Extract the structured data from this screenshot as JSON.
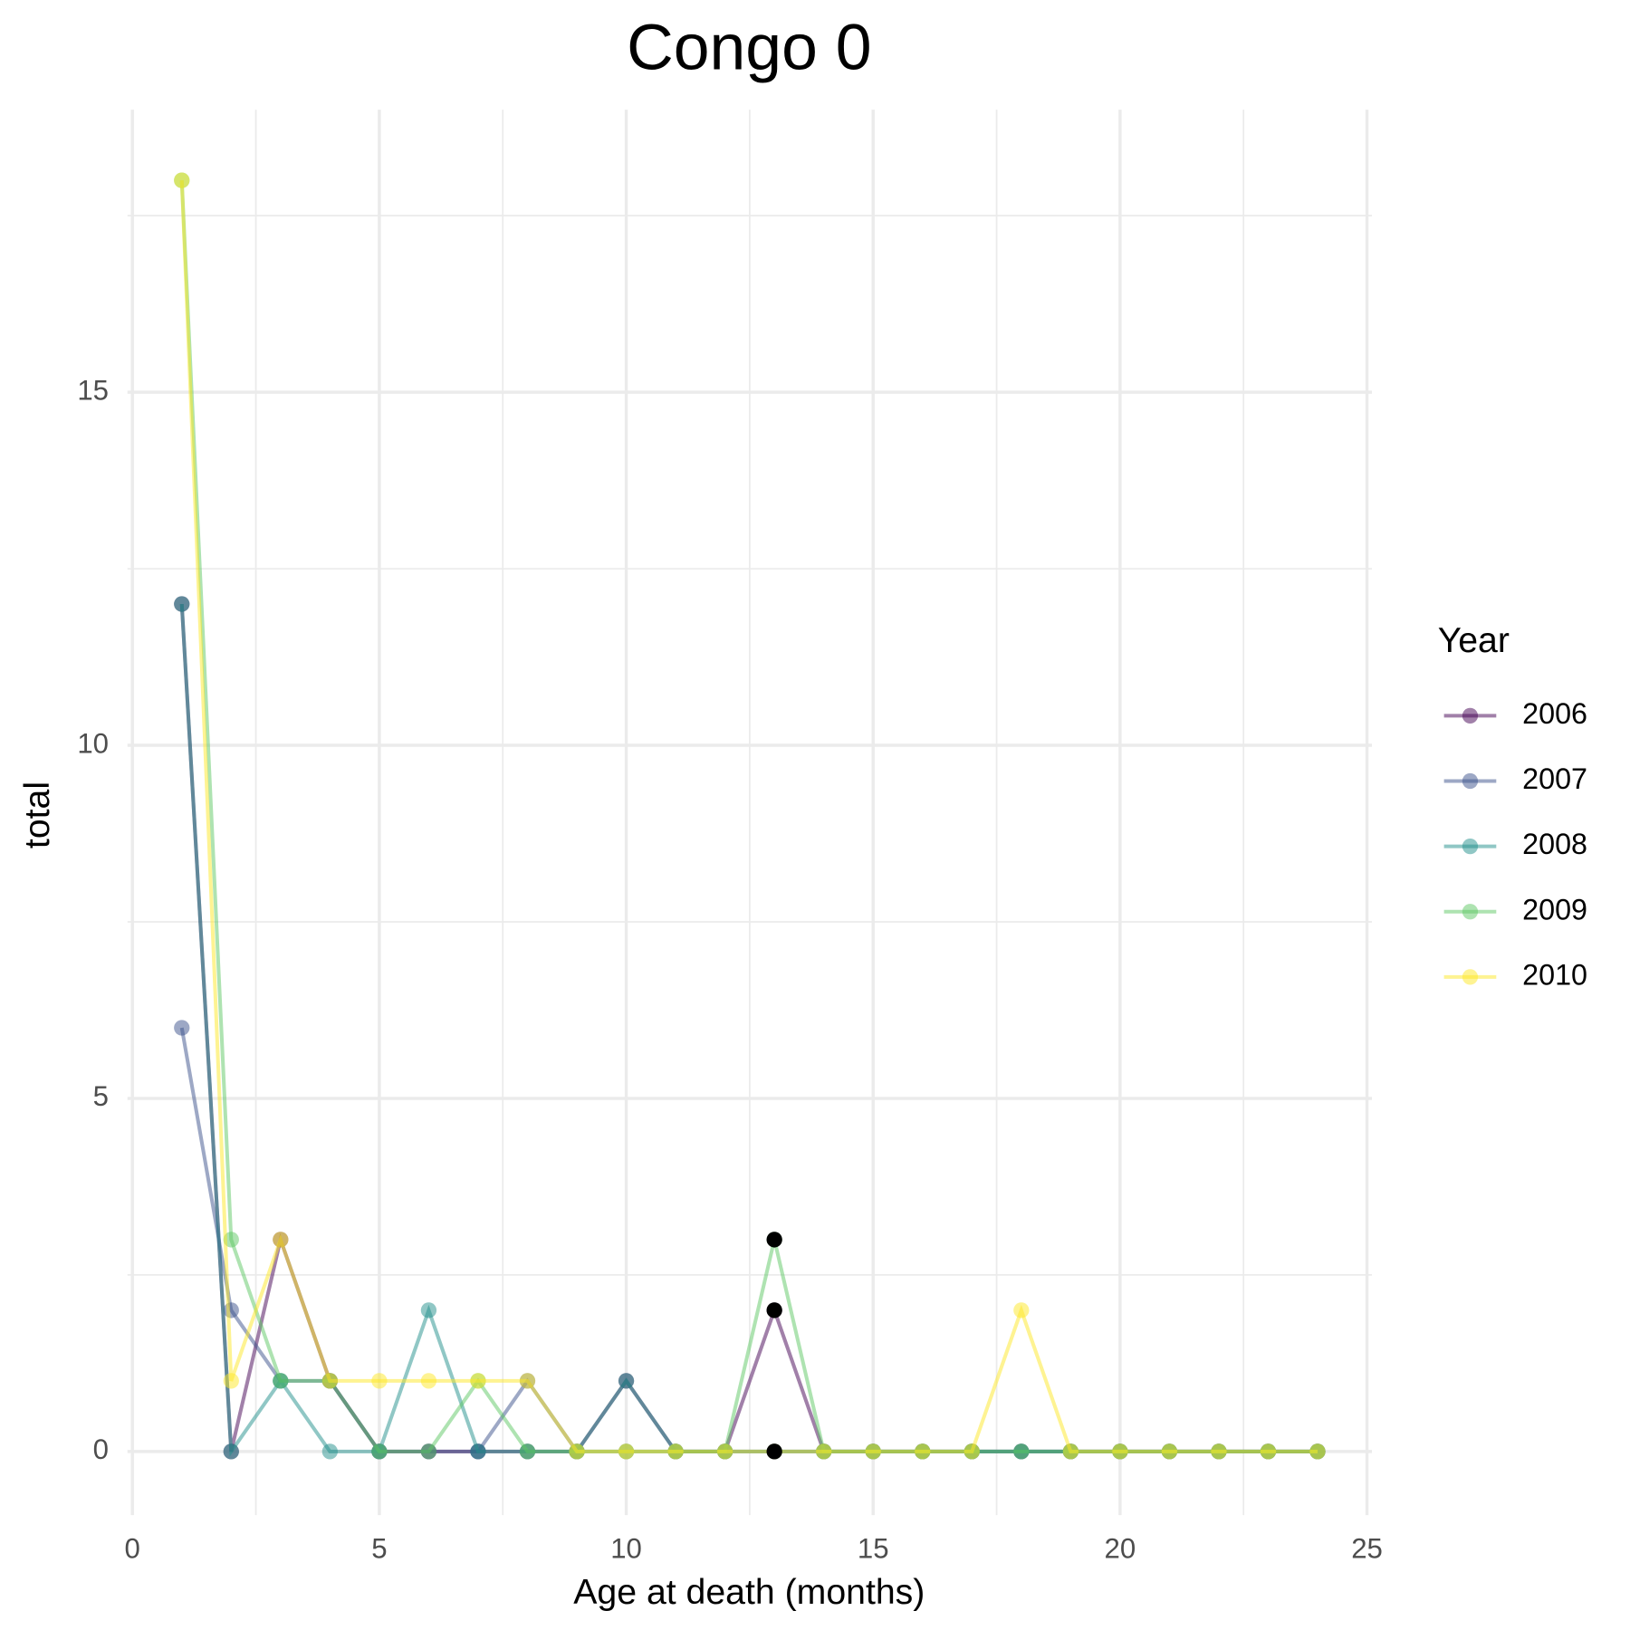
{
  "chart_data": {
    "type": "line",
    "title": "Congo 0",
    "x_label": "Age at death (months)",
    "y_label": "total",
    "legend_title": "Year",
    "x": [
      1,
      2,
      3,
      4,
      5,
      6,
      7,
      8,
      9,
      10,
      11,
      12,
      13,
      14,
      15,
      16,
      17,
      18,
      19,
      20,
      21,
      22,
      23,
      24
    ],
    "series": [
      {
        "name": "2006",
        "color": "#440154",
        "values": [
          12,
          0,
          3,
          1,
          0,
          0,
          0,
          0,
          0,
          1,
          0,
          0,
          2,
          0,
          0,
          0,
          0,
          0,
          0,
          0,
          0,
          0,
          0,
          0
        ]
      },
      {
        "name": "2007",
        "color": "#3B528B",
        "values": [
          6,
          2,
          1,
          1,
          0,
          0,
          0,
          1,
          0,
          0,
          0,
          0,
          0,
          0,
          0,
          0,
          0,
          0,
          0,
          0,
          0,
          0,
          0,
          0
        ]
      },
      {
        "name": "2008",
        "color": "#21908C",
        "values": [
          12,
          0,
          1,
          0,
          0,
          2,
          0,
          0,
          0,
          1,
          0,
          0,
          0,
          0,
          0,
          0,
          0,
          0,
          0,
          0,
          0,
          0,
          0,
          0
        ]
      },
      {
        "name": "2009",
        "color": "#5DC863",
        "values": [
          18,
          3,
          1,
          1,
          0,
          0,
          1,
          0,
          0,
          0,
          0,
          0,
          3,
          0,
          0,
          0,
          0,
          0,
          0,
          0,
          0,
          0,
          0,
          0
        ]
      },
      {
        "name": "2010",
        "color": "#FDE725",
        "values": [
          18,
          1,
          3,
          1,
          1,
          1,
          1,
          1,
          0,
          0,
          0,
          0,
          0,
          0,
          0,
          0,
          0,
          2,
          0,
          0,
          0,
          0,
          0,
          0
        ]
      }
    ],
    "points": {
      "color": "#000000",
      "x": [
        13,
        13,
        13
      ],
      "values": [
        3,
        2,
        0
      ]
    },
    "xlim": [
      -0.1,
      25.1
    ],
    "ylim": [
      -0.9,
      19
    ],
    "xticks": [
      0,
      5,
      10,
      15,
      20,
      25
    ],
    "yticks": [
      0,
      5,
      10,
      15
    ],
    "grid": true,
    "legend": "right"
  }
}
